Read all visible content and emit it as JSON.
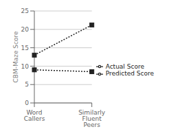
{
  "chart_data": {
    "type": "line",
    "categories": [
      "Word Callers",
      "Similarly Fluent Peers"
    ],
    "series": [
      {
        "name": "Predicted Score",
        "color": "#222222",
        "values": [
          13.0,
          21.2
        ],
        "marker": "square",
        "line_style": "dotted"
      },
      {
        "name": "Actual Score",
        "color": "#222222",
        "values": [
          9.0,
          8.5
        ],
        "marker": "square",
        "line_style": "dotted"
      }
    ],
    "ylabel": "CBM-Maze Score",
    "ylim": [
      0,
      25
    ],
    "yticks": [
      0,
      5,
      10,
      15,
      20,
      25
    ],
    "grid": true,
    "legend": "right"
  }
}
